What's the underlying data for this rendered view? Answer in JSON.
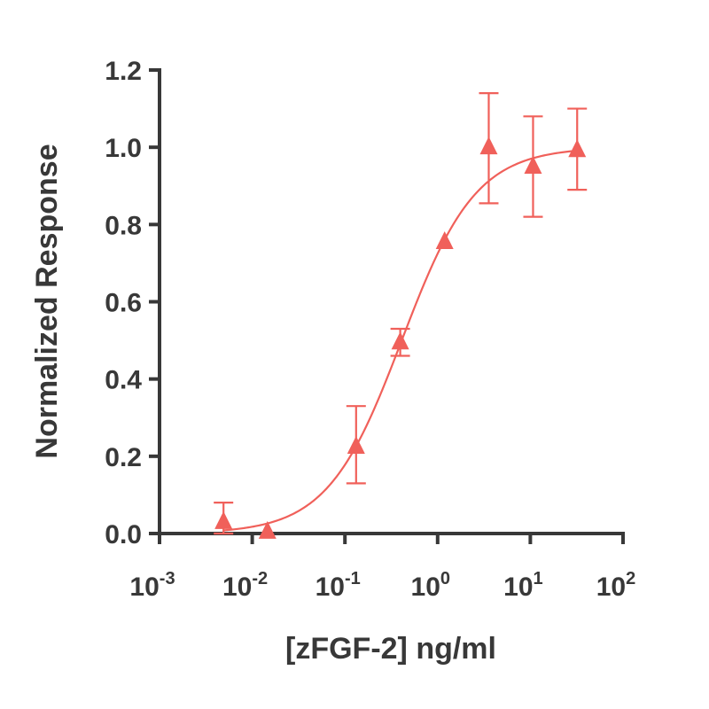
{
  "chart_data": {
    "type": "scatter",
    "title": "",
    "xlabel": "[zFGF-2] ng/ml",
    "ylabel": "Normalized Response",
    "x_scale": "log",
    "xlim": [
      0.001,
      100
    ],
    "ylim": [
      0,
      1.2
    ],
    "x_ticks": [
      {
        "base": "10",
        "exp": "-3",
        "value": 0.001
      },
      {
        "base": "10",
        "exp": "-2",
        "value": 0.01
      },
      {
        "base": "10",
        "exp": "-1",
        "value": 0.1
      },
      {
        "base": "10",
        "exp": "0",
        "value": 1
      },
      {
        "base": "10",
        "exp": "1",
        "value": 10
      },
      {
        "base": "10",
        "exp": "2",
        "value": 100
      }
    ],
    "y_ticks": [
      "0.0",
      "0.2",
      "0.4",
      "0.6",
      "0.8",
      "1.0",
      "1.2"
    ],
    "grid": false,
    "color": "#f0605a",
    "marker": "triangle",
    "points": [
      {
        "x": 0.0049,
        "y": 0.03,
        "err_low": 0.0,
        "err_high": 0.08
      },
      {
        "x": 0.0146,
        "y": 0.005,
        "err_low": 0.005,
        "err_high": 0.005
      },
      {
        "x": 0.132,
        "y": 0.225,
        "err_low": 0.13,
        "err_high": 0.33
      },
      {
        "x": 0.395,
        "y": 0.495,
        "err_low": 0.46,
        "err_high": 0.53
      },
      {
        "x": 1.19,
        "y": 0.755,
        "err_low": 0.755,
        "err_high": 0.755
      },
      {
        "x": 3.56,
        "y": 1.0,
        "err_low": 0.855,
        "err_high": 1.14
      },
      {
        "x": 10.7,
        "y": 0.95,
        "err_low": 0.82,
        "err_high": 1.08
      },
      {
        "x": 32,
        "y": 0.993,
        "err_low": 0.89,
        "err_high": 1.1
      }
    ],
    "fit": {
      "model": "four-parameter logistic",
      "bottom": 0.0,
      "top": 1.0,
      "ec50": 0.41,
      "hill": 1.085,
      "x_range": [
        0.0049,
        32
      ]
    }
  }
}
